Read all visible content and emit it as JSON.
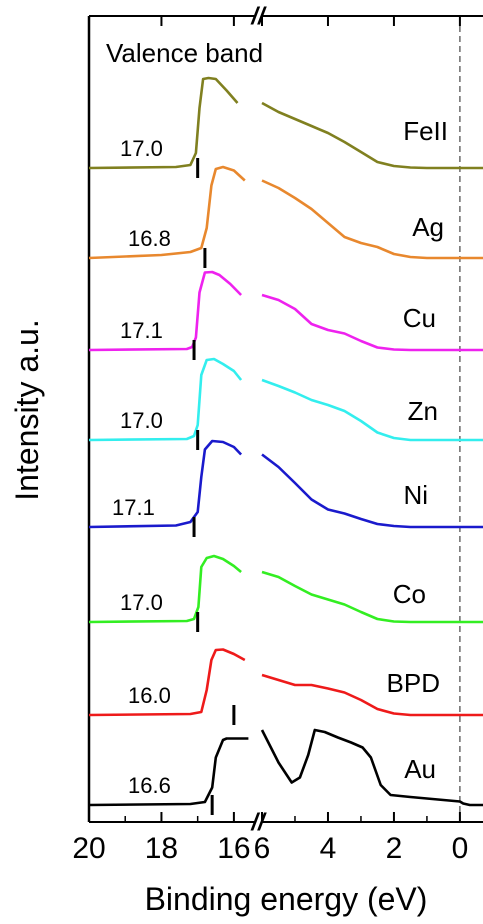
{
  "chart_data": {
    "type": "line",
    "title": "Valence band",
    "xlabel": "Binding energy (eV)",
    "ylabel": "Intensity a.u.",
    "x_axis_segments": [
      {
        "range": [
          20,
          15.5
        ],
        "ticks": [
          20,
          18,
          16
        ]
      },
      {
        "range": [
          6,
          -0.7
        ],
        "ticks": [
          6,
          4,
          2,
          0
        ]
      }
    ],
    "axis_break_label": "//",
    "tick_labels_left": [
      "20",
      "18",
      "16"
    ],
    "tick_labels_right": [
      "6",
      "4",
      "2",
      "0"
    ],
    "fermi_level_line": 0,
    "grid": false,
    "series": [
      {
        "name": "FeII",
        "color": "#808020",
        "cutoff": 17.0,
        "cutoff_label": "17.0",
        "baseline": 0,
        "left": [
          [
            20,
            0
          ],
          [
            17.6,
            0.02
          ],
          [
            17.2,
            0.06
          ],
          [
            17.05,
            0.3
          ],
          [
            16.95,
            1.2
          ],
          [
            16.85,
            1.78
          ],
          [
            16.7,
            1.8
          ],
          [
            16.5,
            1.78
          ],
          [
            16.2,
            1.55
          ],
          [
            15.9,
            1.3
          ]
        ],
        "right": [
          [
            6,
            1.3
          ],
          [
            5.5,
            1.12
          ],
          [
            5,
            0.98
          ],
          [
            4.5,
            0.84
          ],
          [
            4,
            0.7
          ],
          [
            3.5,
            0.52
          ],
          [
            3,
            0.32
          ],
          [
            2.5,
            0.12
          ],
          [
            2,
            0.04
          ],
          [
            1.5,
            0.01
          ],
          [
            1,
            0
          ],
          [
            -0.7,
            0
          ]
        ]
      },
      {
        "name": "Ag",
        "color": "#E8882E",
        "cutoff": 16.8,
        "cutoff_label": "16.8",
        "baseline": 0,
        "left": [
          [
            20,
            0
          ],
          [
            18,
            0.06
          ],
          [
            17.2,
            0.12
          ],
          [
            16.9,
            0.2
          ],
          [
            16.75,
            0.6
          ],
          [
            16.62,
            1.45
          ],
          [
            16.5,
            1.78
          ],
          [
            16.3,
            1.82
          ],
          [
            16,
            1.75
          ],
          [
            15.7,
            1.55
          ]
        ],
        "right": [
          [
            6,
            1.55
          ],
          [
            5.5,
            1.4
          ],
          [
            5,
            1.2
          ],
          [
            4.5,
            0.98
          ],
          [
            4,
            0.7
          ],
          [
            3.5,
            0.42
          ],
          [
            3,
            0.3
          ],
          [
            2.5,
            0.22
          ],
          [
            2,
            0.08
          ],
          [
            1.5,
            0.02
          ],
          [
            1,
            0
          ],
          [
            -0.7,
            0
          ]
        ]
      },
      {
        "name": "Cu",
        "color": "#EE22EE",
        "cutoff": 17.1,
        "cutoff_label": "17.1",
        "baseline": 0,
        "left": [
          [
            20,
            0
          ],
          [
            17.3,
            0.02
          ],
          [
            17.15,
            0.06
          ],
          [
            17.05,
            0.25
          ],
          [
            16.95,
            1.15
          ],
          [
            16.8,
            1.55
          ],
          [
            16.6,
            1.56
          ],
          [
            16.4,
            1.5
          ],
          [
            16.1,
            1.32
          ],
          [
            15.8,
            1.1
          ]
        ],
        "right": [
          [
            6,
            1.1
          ],
          [
            5.5,
            1.0
          ],
          [
            5,
            0.82
          ],
          [
            4.5,
            0.52
          ],
          [
            4,
            0.4
          ],
          [
            3.5,
            0.33
          ],
          [
            3,
            0.18
          ],
          [
            2.5,
            0.05
          ],
          [
            2,
            0.01
          ],
          [
            1.5,
            0
          ],
          [
            -0.7,
            0
          ]
        ]
      },
      {
        "name": "Zn",
        "color": "#33EEEE",
        "cutoff": 17.0,
        "cutoff_label": "17.0",
        "baseline": 0,
        "left": [
          [
            20,
            0
          ],
          [
            17.3,
            0.02
          ],
          [
            17.1,
            0.08
          ],
          [
            17.0,
            0.3
          ],
          [
            16.9,
            1.3
          ],
          [
            16.75,
            1.6
          ],
          [
            16.55,
            1.62
          ],
          [
            16.3,
            1.52
          ],
          [
            16,
            1.38
          ],
          [
            15.8,
            1.2
          ]
        ],
        "right": [
          [
            6,
            1.2
          ],
          [
            5.5,
            1.08
          ],
          [
            5,
            0.95
          ],
          [
            4.5,
            0.8
          ],
          [
            4,
            0.7
          ],
          [
            3.5,
            0.58
          ],
          [
            3,
            0.38
          ],
          [
            2.5,
            0.15
          ],
          [
            2,
            0.04
          ],
          [
            1.5,
            0
          ],
          [
            -0.7,
            0
          ]
        ]
      },
      {
        "name": "Ni",
        "color": "#1A1ACC",
        "cutoff": 17.1,
        "cutoff_label": "17.1",
        "baseline": 0,
        "left": [
          [
            20,
            0
          ],
          [
            17.6,
            0.03
          ],
          [
            17.2,
            0.1
          ],
          [
            17.0,
            0.3
          ],
          [
            16.9,
            1.0
          ],
          [
            16.8,
            1.55
          ],
          [
            16.6,
            1.72
          ],
          [
            16.3,
            1.7
          ],
          [
            16,
            1.6
          ],
          [
            15.8,
            1.45
          ]
        ],
        "right": [
          [
            6,
            1.45
          ],
          [
            5.5,
            1.2
          ],
          [
            5,
            0.88
          ],
          [
            4.5,
            0.55
          ],
          [
            4,
            0.35
          ],
          [
            3.5,
            0.27
          ],
          [
            3,
            0.16
          ],
          [
            2.5,
            0.06
          ],
          [
            2,
            0.02
          ],
          [
            1.5,
            0
          ],
          [
            -0.7,
            0
          ]
        ]
      },
      {
        "name": "Co",
        "color": "#33EE22",
        "cutoff": 17.0,
        "cutoff_label": "17.0",
        "baseline": 0,
        "left": [
          [
            20,
            0
          ],
          [
            17.3,
            0.02
          ],
          [
            17.1,
            0.06
          ],
          [
            16.98,
            0.3
          ],
          [
            16.9,
            1.1
          ],
          [
            16.75,
            1.28
          ],
          [
            16.55,
            1.32
          ],
          [
            16.3,
            1.26
          ],
          [
            16,
            1.12
          ],
          [
            15.8,
            1.0
          ]
        ],
        "right": [
          [
            6,
            1.0
          ],
          [
            5.5,
            0.9
          ],
          [
            5,
            0.72
          ],
          [
            4.5,
            0.55
          ],
          [
            4,
            0.45
          ],
          [
            3.5,
            0.35
          ],
          [
            3,
            0.2
          ],
          [
            2.5,
            0.06
          ],
          [
            2,
            0.01
          ],
          [
            1.5,
            0
          ],
          [
            -0.7,
            0
          ]
        ]
      },
      {
        "name": "BPD",
        "color": "#EE1A1A",
        "cutoff": 16.0,
        "cutoff_label": "16.0",
        "baseline": 0,
        "left": [
          [
            20,
            0
          ],
          [
            17.2,
            0.02
          ],
          [
            16.9,
            0.06
          ],
          [
            16.75,
            0.5
          ],
          [
            16.62,
            1.1
          ],
          [
            16.5,
            1.3
          ],
          [
            16.3,
            1.31
          ],
          [
            16,
            1.22
          ],
          [
            15.7,
            1.1
          ]
        ],
        "right": [
          [
            6,
            0.8
          ],
          [
            5.5,
            0.7
          ],
          [
            5,
            0.6
          ],
          [
            4.5,
            0.6
          ],
          [
            4,
            0.53
          ],
          [
            3.5,
            0.45
          ],
          [
            3,
            0.3
          ],
          [
            2.5,
            0.12
          ],
          [
            2,
            0.03
          ],
          [
            1.5,
            0
          ],
          [
            -0.7,
            0
          ]
        ]
      },
      {
        "name": "Au",
        "color": "#000000",
        "cutoff": 16.6,
        "cutoff_label": "16.6",
        "baseline": 0,
        "left": [
          [
            20,
            0
          ],
          [
            17.2,
            0.02
          ],
          [
            16.8,
            0.06
          ],
          [
            16.6,
            0.35
          ],
          [
            16.5,
            0.95
          ],
          [
            16.3,
            1.3
          ],
          [
            16.2,
            1.33
          ],
          [
            15.6,
            1.33
          ]
        ],
        "right": [
          [
            6,
            1.5
          ],
          [
            5.5,
            0.85
          ],
          [
            5.1,
            0.45
          ],
          [
            4.85,
            0.55
          ],
          [
            4.6,
            1.0
          ],
          [
            4.4,
            1.5
          ],
          [
            4.1,
            1.46
          ],
          [
            3.7,
            1.35
          ],
          [
            3.3,
            1.25
          ],
          [
            2.95,
            1.15
          ],
          [
            2.7,
            0.95
          ],
          [
            2.4,
            0.4
          ],
          [
            2.1,
            0.2
          ],
          [
            1.5,
            0.16
          ],
          [
            1,
            0.13
          ],
          [
            0.5,
            0.1
          ],
          [
            0,
            0.07
          ],
          [
            -0.1,
            0.03
          ],
          [
            -0.3,
            0
          ],
          [
            -0.7,
            0
          ]
        ]
      }
    ]
  }
}
